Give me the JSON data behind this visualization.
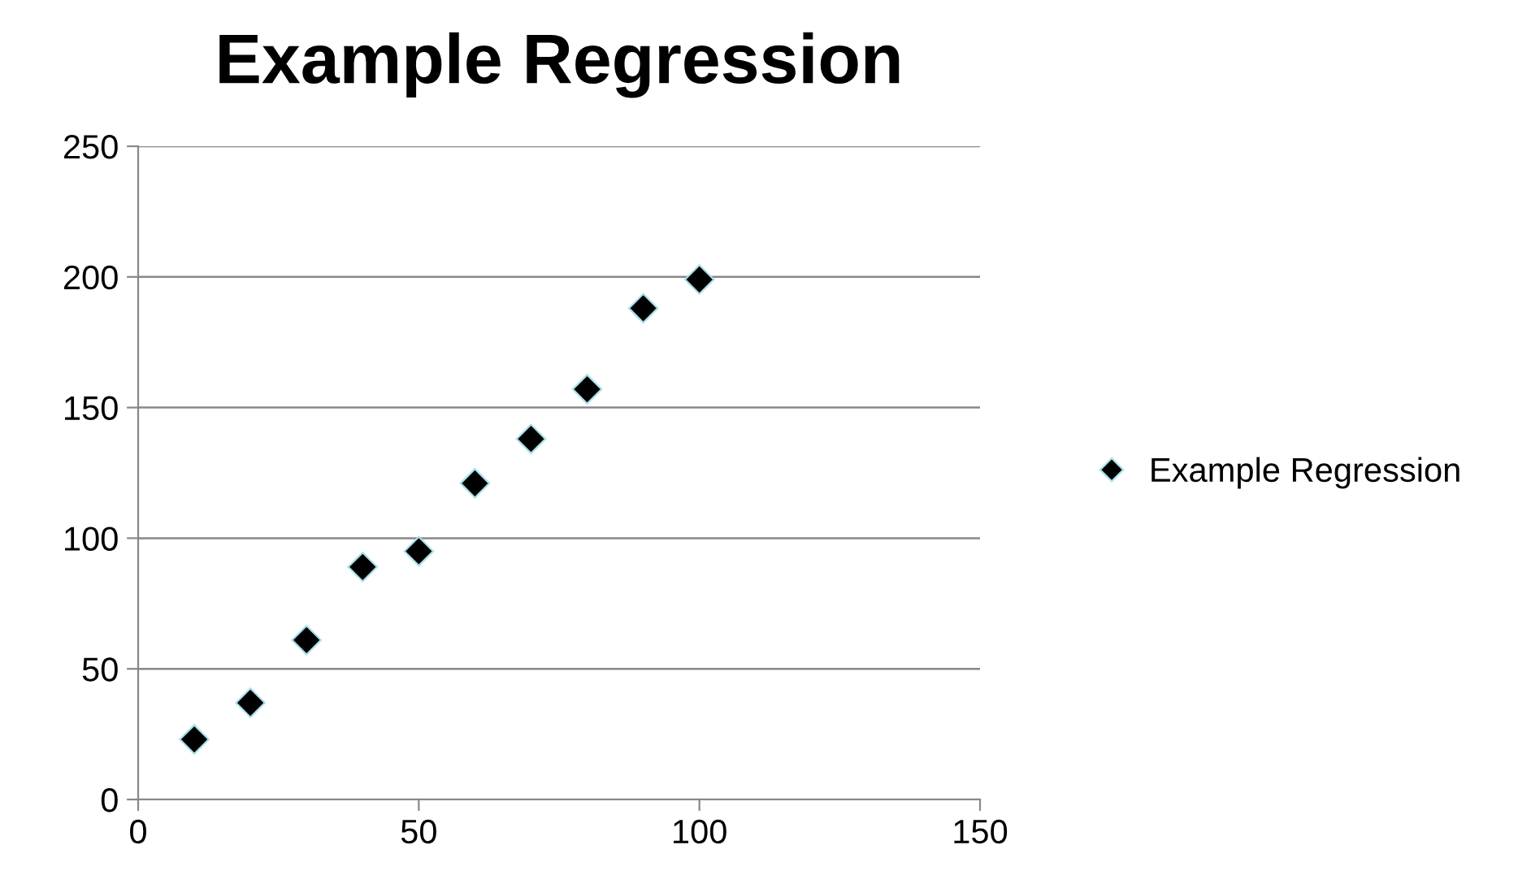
{
  "chart_data": {
    "type": "scatter",
    "title": "Example Regression",
    "x": [
      10,
      20,
      30,
      40,
      50,
      60,
      70,
      80,
      90,
      100
    ],
    "series": [
      {
        "name": "Example Regression",
        "color": "#000000",
        "values": [
          23,
          37,
          61,
          89,
          95,
          121,
          138,
          157,
          188,
          199
        ]
      }
    ],
    "xlim": [
      0,
      150
    ],
    "xticks": [
      0,
      50,
      100,
      150
    ],
    "ylim": [
      0,
      250
    ],
    "yticks": [
      0,
      50,
      100,
      150,
      200,
      250
    ],
    "grid": "y",
    "legend": "right",
    "marker": "diamond"
  }
}
